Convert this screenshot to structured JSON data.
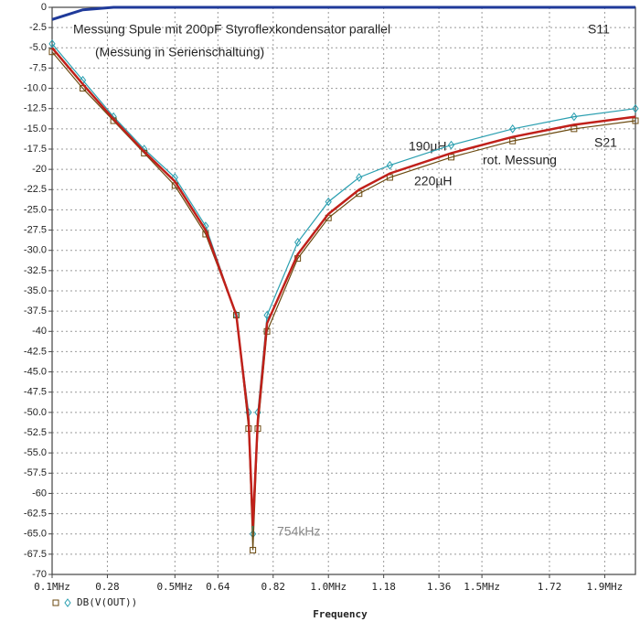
{
  "chart_data": {
    "type": "line",
    "title": "Messung Spule mit 200pF Styroflexkondensator parallel",
    "subtitle": "(Messung in Serienschaltung)",
    "x_label": "Frequency",
    "legend_label": "DB(V(OUT))",
    "annotations": [
      "S11",
      "S21",
      "190µH",
      "220µH",
      "rot. Messung",
      "754kHz"
    ],
    "x": [
      0.1,
      0.2,
      0.3,
      0.4,
      0.5,
      0.6,
      0.7,
      0.74,
      0.754,
      0.77,
      0.8,
      0.9,
      1.0,
      1.1,
      1.2,
      1.4,
      1.6,
      1.8,
      2.0
    ],
    "series": [
      {
        "name": "S11",
        "color": "#1f3a9a",
        "width": 3,
        "marker": "none",
        "values": [
          -1.5,
          -0.3,
          0,
          0,
          0,
          0,
          0,
          0,
          0,
          0,
          0,
          0,
          0,
          0,
          0,
          0,
          0,
          0,
          0
        ]
      },
      {
        "name": "190µH",
        "color": "#2a9fb0",
        "width": 1.2,
        "marker": "diamond",
        "values": [
          -4.5,
          -9,
          -13.5,
          -17.5,
          -21,
          -27,
          -38,
          -50,
          -65,
          -50,
          -38,
          -29,
          -24,
          -21,
          -19.5,
          -17,
          -15,
          -13.5,
          -12.5
        ]
      },
      {
        "name": "220µH",
        "color": "#6b4a10",
        "width": 1.2,
        "marker": "square",
        "values": [
          -5.5,
          -10,
          -14,
          -18,
          -22,
          -28,
          -38,
          -52,
          -67,
          -52,
          -40,
          -31,
          -26,
          -23,
          -21,
          -18.5,
          -16.5,
          -15,
          -14
        ]
      },
      {
        "name": "rot. Messung",
        "color": "#c0201a",
        "width": 2.5,
        "marker": "none",
        "values": [
          -5,
          -9.5,
          -13.8,
          -17.8,
          -21.5,
          -27.5,
          -38,
          -51,
          -64,
          -51,
          -39,
          -30.5,
          -25.5,
          -22.5,
          -20.5,
          -18,
          -16,
          -14.5,
          -13.5
        ]
      }
    ],
    "xlim": [
      0.1,
      2.0
    ],
    "xticks": [
      {
        "value": 0.1,
        "label": "0.1MHz"
      },
      0.28,
      {
        "value": 0.5,
        "label": "0.5MHz"
      },
      0.64,
      0.82,
      {
        "value": 1.0,
        "label": "1.0MHz"
      },
      1.18,
      1.36,
      {
        "value": 1.5,
        "label": "1.5MHz"
      },
      1.72,
      {
        "value": 1.9,
        "label": "1.9MHz"
      }
    ],
    "ylim": [
      -70,
      0
    ],
    "yticks": [
      0,
      -2.5,
      {
        "value": -5,
        "label": "-5.0"
      },
      -7.5,
      {
        "value": -10,
        "label": "-10.0"
      },
      -12.5,
      {
        "value": -15,
        "label": "-15.0"
      },
      -17.5,
      -20,
      -22.5,
      {
        "value": -25,
        "label": "-25.0"
      },
      -27.5,
      {
        "value": -30,
        "label": "-30.0"
      },
      -32.5,
      {
        "value": -35,
        "label": "-35.0"
      },
      -37.5,
      -40,
      -42.5,
      {
        "value": -45,
        "label": "-45.0"
      },
      -47.5,
      {
        "value": -50,
        "label": "-50.0"
      },
      -52.5,
      {
        "value": -55,
        "label": "-55.0"
      },
      -57.5,
      -60,
      -62.5,
      {
        "value": -65,
        "label": "-65.0"
      },
      -67.5,
      -70
    ],
    "grid": true
  }
}
